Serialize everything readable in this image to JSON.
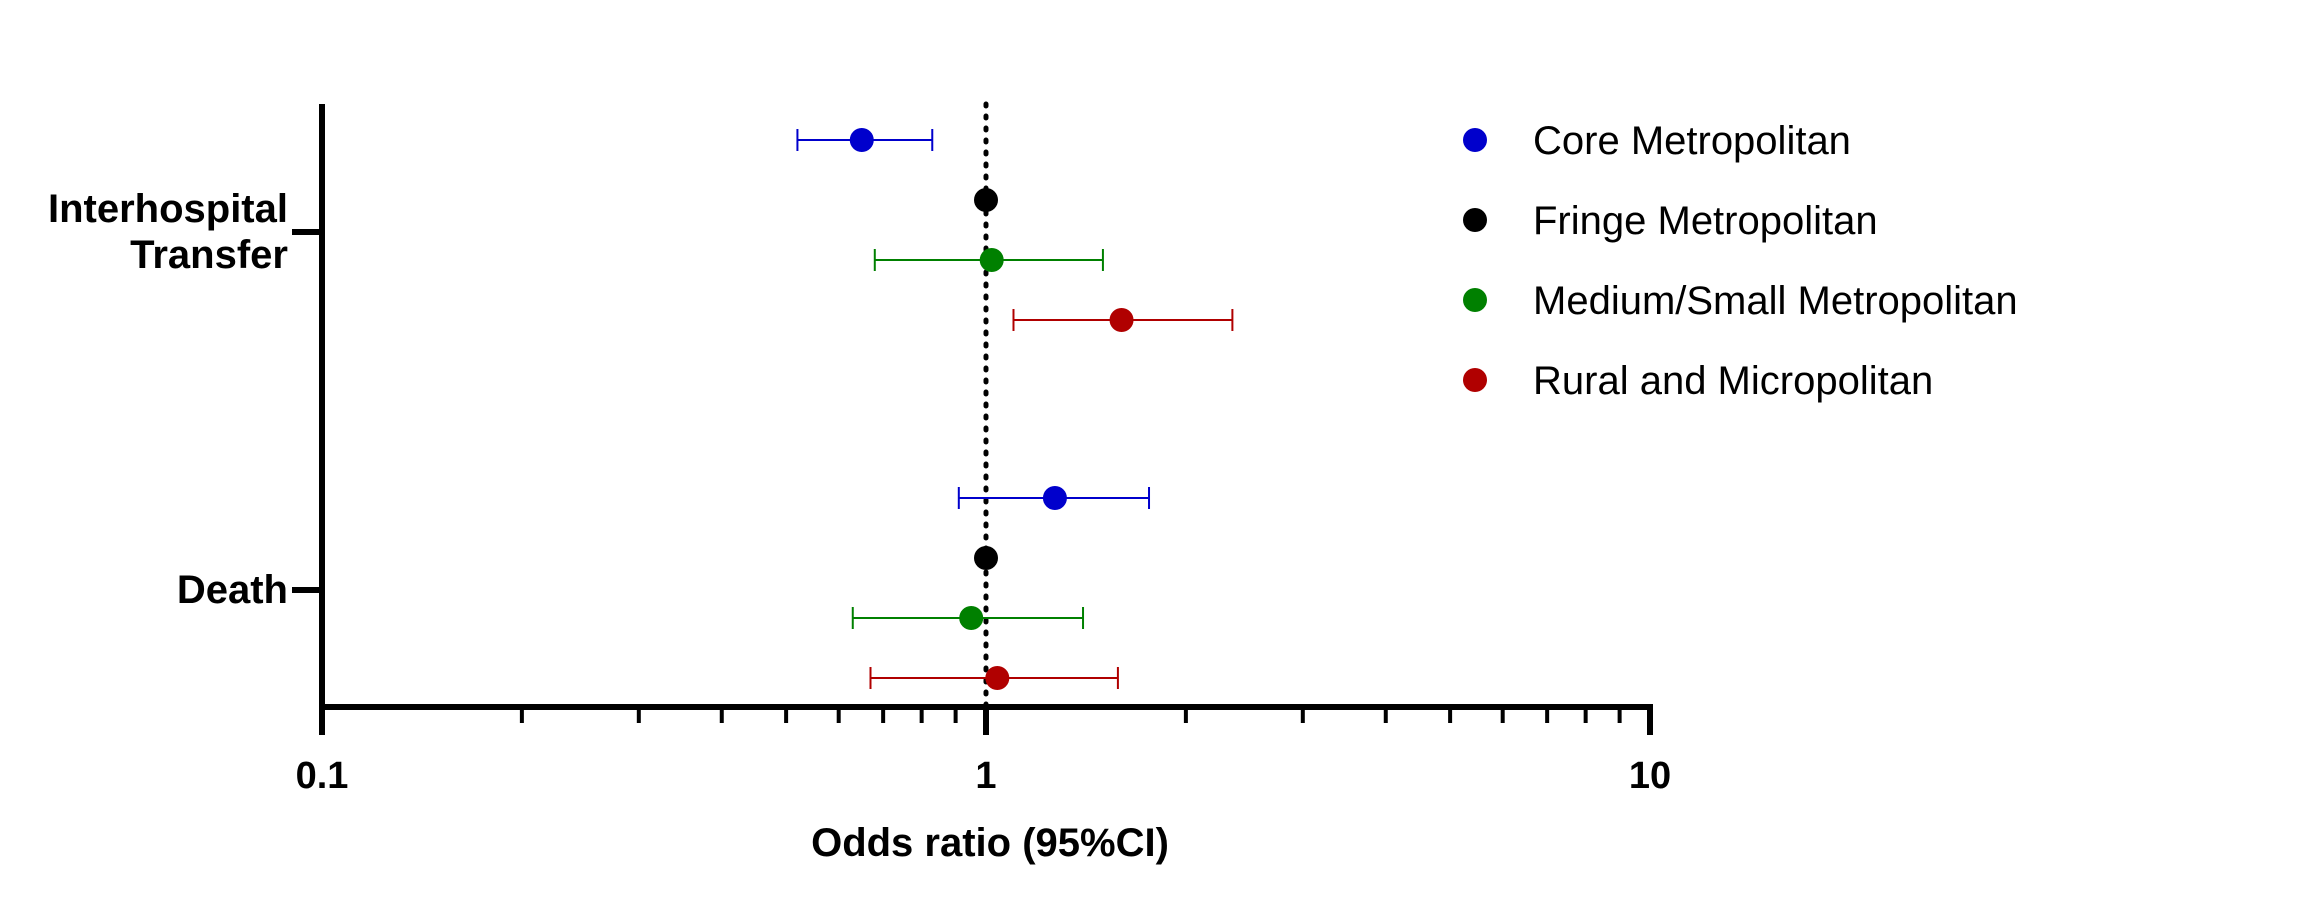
{
  "chart_data": {
    "type": "scatter",
    "subtype": "forest-plot",
    "xlabel": "Odds ratio (95%CI)",
    "x_scale": "log",
    "xlim": [
      0.1,
      10
    ],
    "x_ticks": [
      "0.1",
      "1",
      "10"
    ],
    "reference_line": 1,
    "grid": false,
    "legend_position": "top-right",
    "groups": [
      {
        "label_lines": [
          "Interhospital",
          "Transfer"
        ]
      },
      {
        "label_lines": [
          "Death"
        ]
      }
    ],
    "series": [
      {
        "name": "Core Metropolitan",
        "color": "#0000cc",
        "points": [
          {
            "group": 0,
            "or": 0.65,
            "lower": 0.52,
            "upper": 0.83
          },
          {
            "group": 1,
            "or": 1.27,
            "lower": 0.91,
            "upper": 1.76
          }
        ]
      },
      {
        "name": "Fringe Metropolitan",
        "color": "#000000",
        "points": [
          {
            "group": 0,
            "or": 1.0,
            "lower": 1.0,
            "upper": 1.0
          },
          {
            "group": 1,
            "or": 1.0,
            "lower": 1.0,
            "upper": 1.0
          }
        ]
      },
      {
        "name": "Medium/Small Metropolitan",
        "color": "#008000",
        "points": [
          {
            "group": 0,
            "or": 1.02,
            "lower": 0.68,
            "upper": 1.5
          },
          {
            "group": 1,
            "or": 0.95,
            "lower": 0.63,
            "upper": 1.4
          }
        ]
      },
      {
        "name": "Rural and Micropolitan",
        "color": "#b00000",
        "points": [
          {
            "group": 0,
            "or": 1.6,
            "lower": 1.1,
            "upper": 2.35
          },
          {
            "group": 1,
            "or": 1.04,
            "lower": 0.67,
            "upper": 1.58
          }
        ]
      }
    ]
  }
}
